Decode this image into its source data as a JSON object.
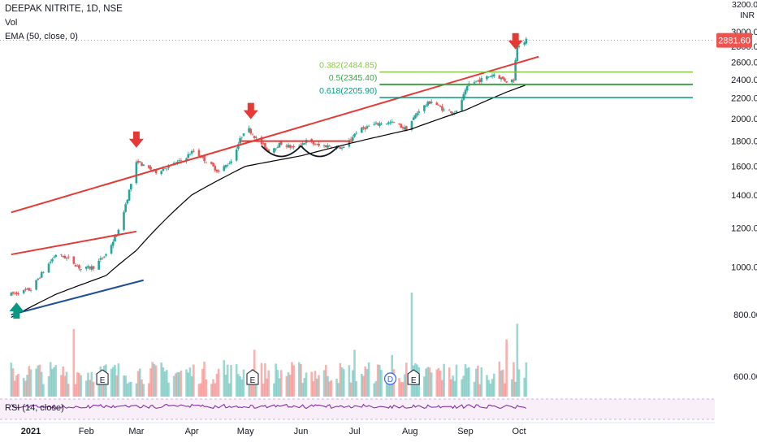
{
  "legend": {
    "title": "DEEPAK NITRITE, 1D, NSE",
    "volume": "Vol",
    "ema": "EMA (50, close, 0)"
  },
  "rsi_label": "RSI (14, close)",
  "currency": "INR",
  "price_scale_top": "3200.00",
  "current_price": "2881.60",
  "colors": {
    "up": "#26a69a",
    "down": "#ef5350",
    "trend": "#e53935",
    "ema": "#000000",
    "support": "#1e4d9b",
    "fib": "#2e9e5b",
    "marker_down": "#e53935",
    "marker_up": "#089981",
    "rsi": "#7b1fa2"
  },
  "chart_data": {
    "type": "candlestick",
    "y_axis": {
      "range": [
        560,
        3200
      ],
      "ticks": [
        "600.00",
        "800.00",
        "1000.00",
        "1200.00",
        "1400.00",
        "1600.00",
        "1800.00",
        "2000.00",
        "2200.00",
        "2400.00",
        "2600.00",
        "2800.00",
        "3000.00"
      ]
    },
    "x_axis": {
      "labels": [
        "2021",
        "Feb",
        "Mar",
        "Apr",
        "May",
        "Jun",
        "Jul",
        "Aug",
        "Sep",
        "Oct"
      ]
    },
    "price_anchors": [
      [
        "2020-12-21",
        880
      ],
      [
        "2021-01-01",
        900
      ],
      [
        "2021-01-08",
        980
      ],
      [
        "2021-01-15",
        1060
      ],
      [
        "2021-01-22",
        1040
      ],
      [
        "2021-01-29",
        990
      ],
      [
        "2021-02-05",
        1000
      ],
      [
        "2021-02-12",
        1060
      ],
      [
        "2021-02-19",
        1180
      ],
      [
        "2021-02-24",
        1380
      ],
      [
        "2021-03-01",
        1620
      ],
      [
        "2021-03-02",
        1640
      ],
      [
        "2021-03-05",
        1600
      ],
      [
        "2021-03-12",
        1560
      ],
      [
        "2021-03-19",
        1600
      ],
      [
        "2021-03-26",
        1640
      ],
      [
        "2021-04-02",
        1720
      ],
      [
        "2021-04-09",
        1640
      ],
      [
        "2021-04-16",
        1560
      ],
      [
        "2021-04-23",
        1640
      ],
      [
        "2021-04-30",
        1880
      ],
      [
        "2021-05-03",
        1900
      ],
      [
        "2021-05-07",
        1820
      ],
      [
        "2021-05-14",
        1720
      ],
      [
        "2021-05-21",
        1780
      ],
      [
        "2021-05-28",
        1740
      ],
      [
        "2021-06-04",
        1800
      ],
      [
        "2021-06-11",
        1760
      ],
      [
        "2021-06-18",
        1760
      ],
      [
        "2021-06-25",
        1740
      ],
      [
        "2021-07-02",
        1880
      ],
      [
        "2021-07-09",
        1930
      ],
      [
        "2021-07-16",
        1960
      ],
      [
        "2021-07-23",
        1960
      ],
      [
        "2021-07-30",
        1900
      ],
      [
        "2021-08-06",
        2080
      ],
      [
        "2021-08-13",
        2170
      ],
      [
        "2021-08-20",
        2080
      ],
      [
        "2021-08-27",
        2060
      ],
      [
        "2021-09-03",
        2350
      ],
      [
        "2021-09-10",
        2400
      ],
      [
        "2021-09-17",
        2460
      ],
      [
        "2021-09-24",
        2380
      ],
      [
        "2021-09-28",
        2400
      ],
      [
        "2021-09-29",
        2620
      ],
      [
        "2021-09-30",
        2820
      ],
      [
        "2021-10-05",
        2881.6
      ]
    ],
    "ema_anchors": [
      [
        "2020-12-21",
        790
      ],
      [
        "2021-01-15",
        880
      ],
      [
        "2021-02-12",
        960
      ],
      [
        "2021-03-01",
        1080
      ],
      [
        "2021-04-01",
        1400
      ],
      [
        "2021-05-01",
        1600
      ],
      [
        "2021-06-01",
        1680
      ],
      [
        "2021-07-01",
        1790
      ],
      [
        "2021-08-01",
        1900
      ],
      [
        "2021-09-01",
        2080
      ],
      [
        "2021-09-25",
        2270
      ],
      [
        "2021-10-05",
        2340
      ]
    ],
    "fibonacci": [
      {
        "label": "0.382(2484.85)",
        "value": 2484.85
      },
      {
        "label": "0.5(2345.40)",
        "value": 2345.4
      },
      {
        "label": "0.618(2205.90)",
        "value": 2205.9
      }
    ],
    "annotations": {
      "rising_trendline": [
        [
          "2020-12-21",
          1290
        ],
        [
          "2021-10-12",
          2670
        ]
      ],
      "early_resistance": [
        [
          "2020-12-21",
          1060
        ],
        [
          "2021-03-01",
          1180
        ]
      ],
      "support_line": [
        [
          "2020-12-21",
          800
        ],
        [
          "2021-03-05",
          940
        ]
      ],
      "neckline": {
        "value": 1800,
        "from": "2021-04-28",
        "to": "2021-06-30"
      },
      "down_arrows": [
        "2021-03-01",
        "2021-05-04",
        "2021-09-29"
      ],
      "up_arrows": [
        "2020-12-24"
      ],
      "earnings_markers": [
        "2021-02-10",
        "2021-05-05",
        "2021-08-03"
      ],
      "dividend_markers": [
        "2021-07-21"
      ]
    },
    "volume_spikes": [
      [
        "2021-01-25",
        0.65
      ],
      [
        "2021-04-19",
        0.35
      ],
      [
        "2021-05-06",
        0.45
      ],
      [
        "2021-07-01",
        0.45
      ],
      [
        "2021-07-22",
        0.4
      ],
      [
        "2021-08-02",
        1.0
      ],
      [
        "2021-09-24",
        0.55
      ],
      [
        "2021-09-30",
        0.7
      ]
    ],
    "rsi": {
      "length": 14
    }
  }
}
